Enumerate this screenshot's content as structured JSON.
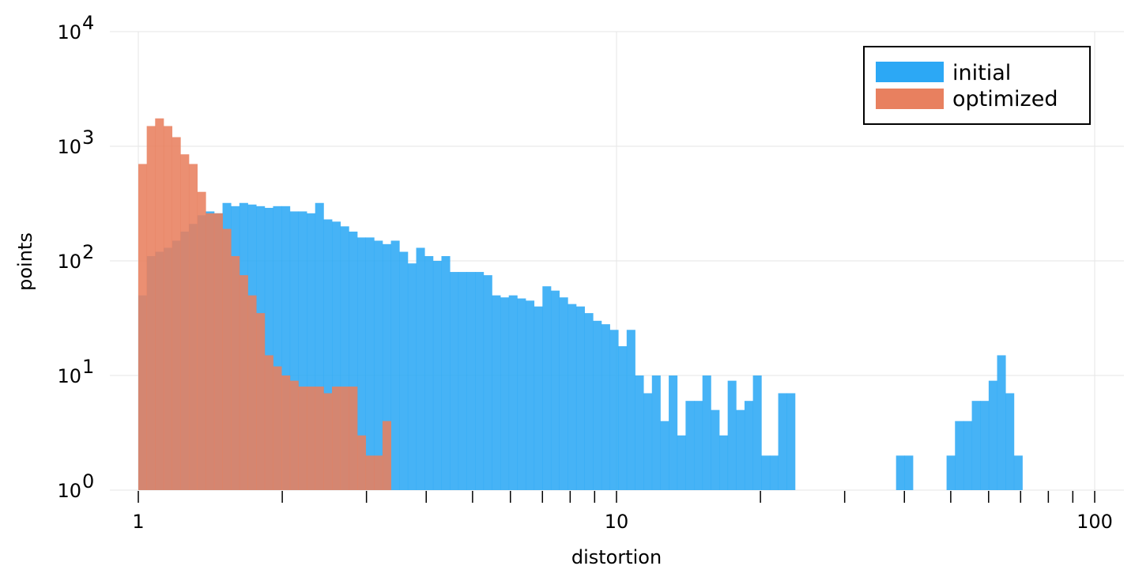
{
  "chart_data": {
    "type": "bar",
    "xlabel": "distortion",
    "ylabel": "points",
    "x_scale": "log",
    "y_scale": "log",
    "xlim": [
      0.94,
      110
    ],
    "ylim": [
      1,
      10000
    ],
    "grid": true,
    "legend_position": "top-right",
    "x_ticks": [
      {
        "value": 1,
        "label": "1"
      },
      {
        "value": 10,
        "label": "10"
      },
      {
        "value": 100,
        "label": "100"
      }
    ],
    "x_minor_ticks": [
      2,
      3,
      4,
      5,
      6,
      7,
      8,
      9,
      20,
      30,
      40,
      50,
      60,
      70,
      80,
      90
    ],
    "y_ticks": [
      {
        "value": 1,
        "base": "10",
        "exp": "0"
      },
      {
        "value": 10,
        "base": "10",
        "exp": "1"
      },
      {
        "value": 100,
        "base": "10",
        "exp": "2"
      },
      {
        "value": 1000,
        "base": "10",
        "exp": "3"
      },
      {
        "value": 10000,
        "base": "10",
        "exp": "4"
      }
    ],
    "bin_edges": [
      1.0,
      1.0414,
      1.0844,
      1.1293,
      1.1761,
      1.2248,
      1.2755,
      1.3283,
      1.3832,
      1.4405,
      1.5001,
      1.5621,
      1.6268,
      1.6941,
      1.7641,
      1.8372,
      1.9132,
      1.9923,
      2.0748,
      2.1606,
      2.25,
      2.3431,
      2.44,
      2.541,
      2.6461,
      2.7556,
      2.8696,
      2.9883,
      3.112,
      3.2407,
      3.3748,
      3.5144,
      3.6598,
      3.8112,
      3.9689,
      4.1332,
      4.3042,
      4.4822,
      4.6677,
      4.8608,
      5.0619,
      5.2713,
      5.4894,
      5.7165,
      5.953,
      6.1993,
      6.4558,
      6.7229,
      7.001,
      7.2907,
      7.5923,
      7.9064,
      8.2335,
      8.5742,
      8.9289,
      9.2983,
      9.683,
      10.0836,
      10.5008,
      10.9352,
      11.3877,
      11.8588,
      12.3494,
      12.8603,
      13.3924,
      13.9465,
      14.5235,
      15.1244,
      15.7501,
      16.4017,
      17.0803,
      17.787,
      18.5229,
      19.2892,
      20.0872,
      20.9183,
      21.7837,
      22.685,
      23.6235,
      24.6009,
      25.6187,
      26.6786,
      27.7824,
      28.9318,
      30.1288,
      31.3753,
      32.6734,
      34.0252,
      35.4329,
      36.8989,
      38.4255,
      40.0152,
      41.6707,
      43.3948,
      45.1901,
      47.0597,
      49.0067,
      51.0343,
      53.1457,
      55.3445,
      57.6342,
      60.0187,
      62.5019,
      65.0878,
      67.7806,
      70.5849,
      73.5052,
      76.5463,
      79.7132,
      83.0112,
      86.4455,
      90.022,
      93.7464,
      97.6251,
      101.664,
      105.8702
    ],
    "series": [
      {
        "name": "initial",
        "color": "#2CA8F5",
        "values": [
          50,
          110,
          120,
          130,
          150,
          180,
          210,
          250,
          270,
          260,
          320,
          300,
          320,
          310,
          300,
          290,
          300,
          300,
          270,
          270,
          260,
          320,
          230,
          220,
          200,
          180,
          160,
          160,
          150,
          140,
          150,
          120,
          95,
          130,
          110,
          100,
          110,
          80,
          80,
          80,
          80,
          75,
          50,
          48,
          50,
          47,
          45,
          40,
          60,
          55,
          48,
          42,
          40,
          35,
          30,
          28,
          25,
          18,
          25,
          10,
          7,
          10,
          4,
          10,
          3,
          6,
          6,
          10,
          5,
          3,
          9,
          5,
          6,
          10,
          2,
          2,
          7,
          7,
          0,
          0,
          0,
          0,
          0,
          0,
          0,
          0,
          0,
          0,
          0,
          0,
          2,
          2,
          0,
          0,
          0,
          0,
          2,
          4,
          4,
          6,
          6,
          9,
          15,
          7,
          2
        ]
      },
      {
        "name": "optimized",
        "color": "#E8805F",
        "values": [
          700,
          1500,
          1750,
          1500,
          1200,
          850,
          700,
          400,
          260,
          260,
          190,
          110,
          75,
          50,
          35,
          15,
          12,
          10,
          9,
          8,
          8,
          8,
          7,
          8,
          8,
          8,
          3,
          2,
          2,
          4
        ]
      }
    ]
  }
}
